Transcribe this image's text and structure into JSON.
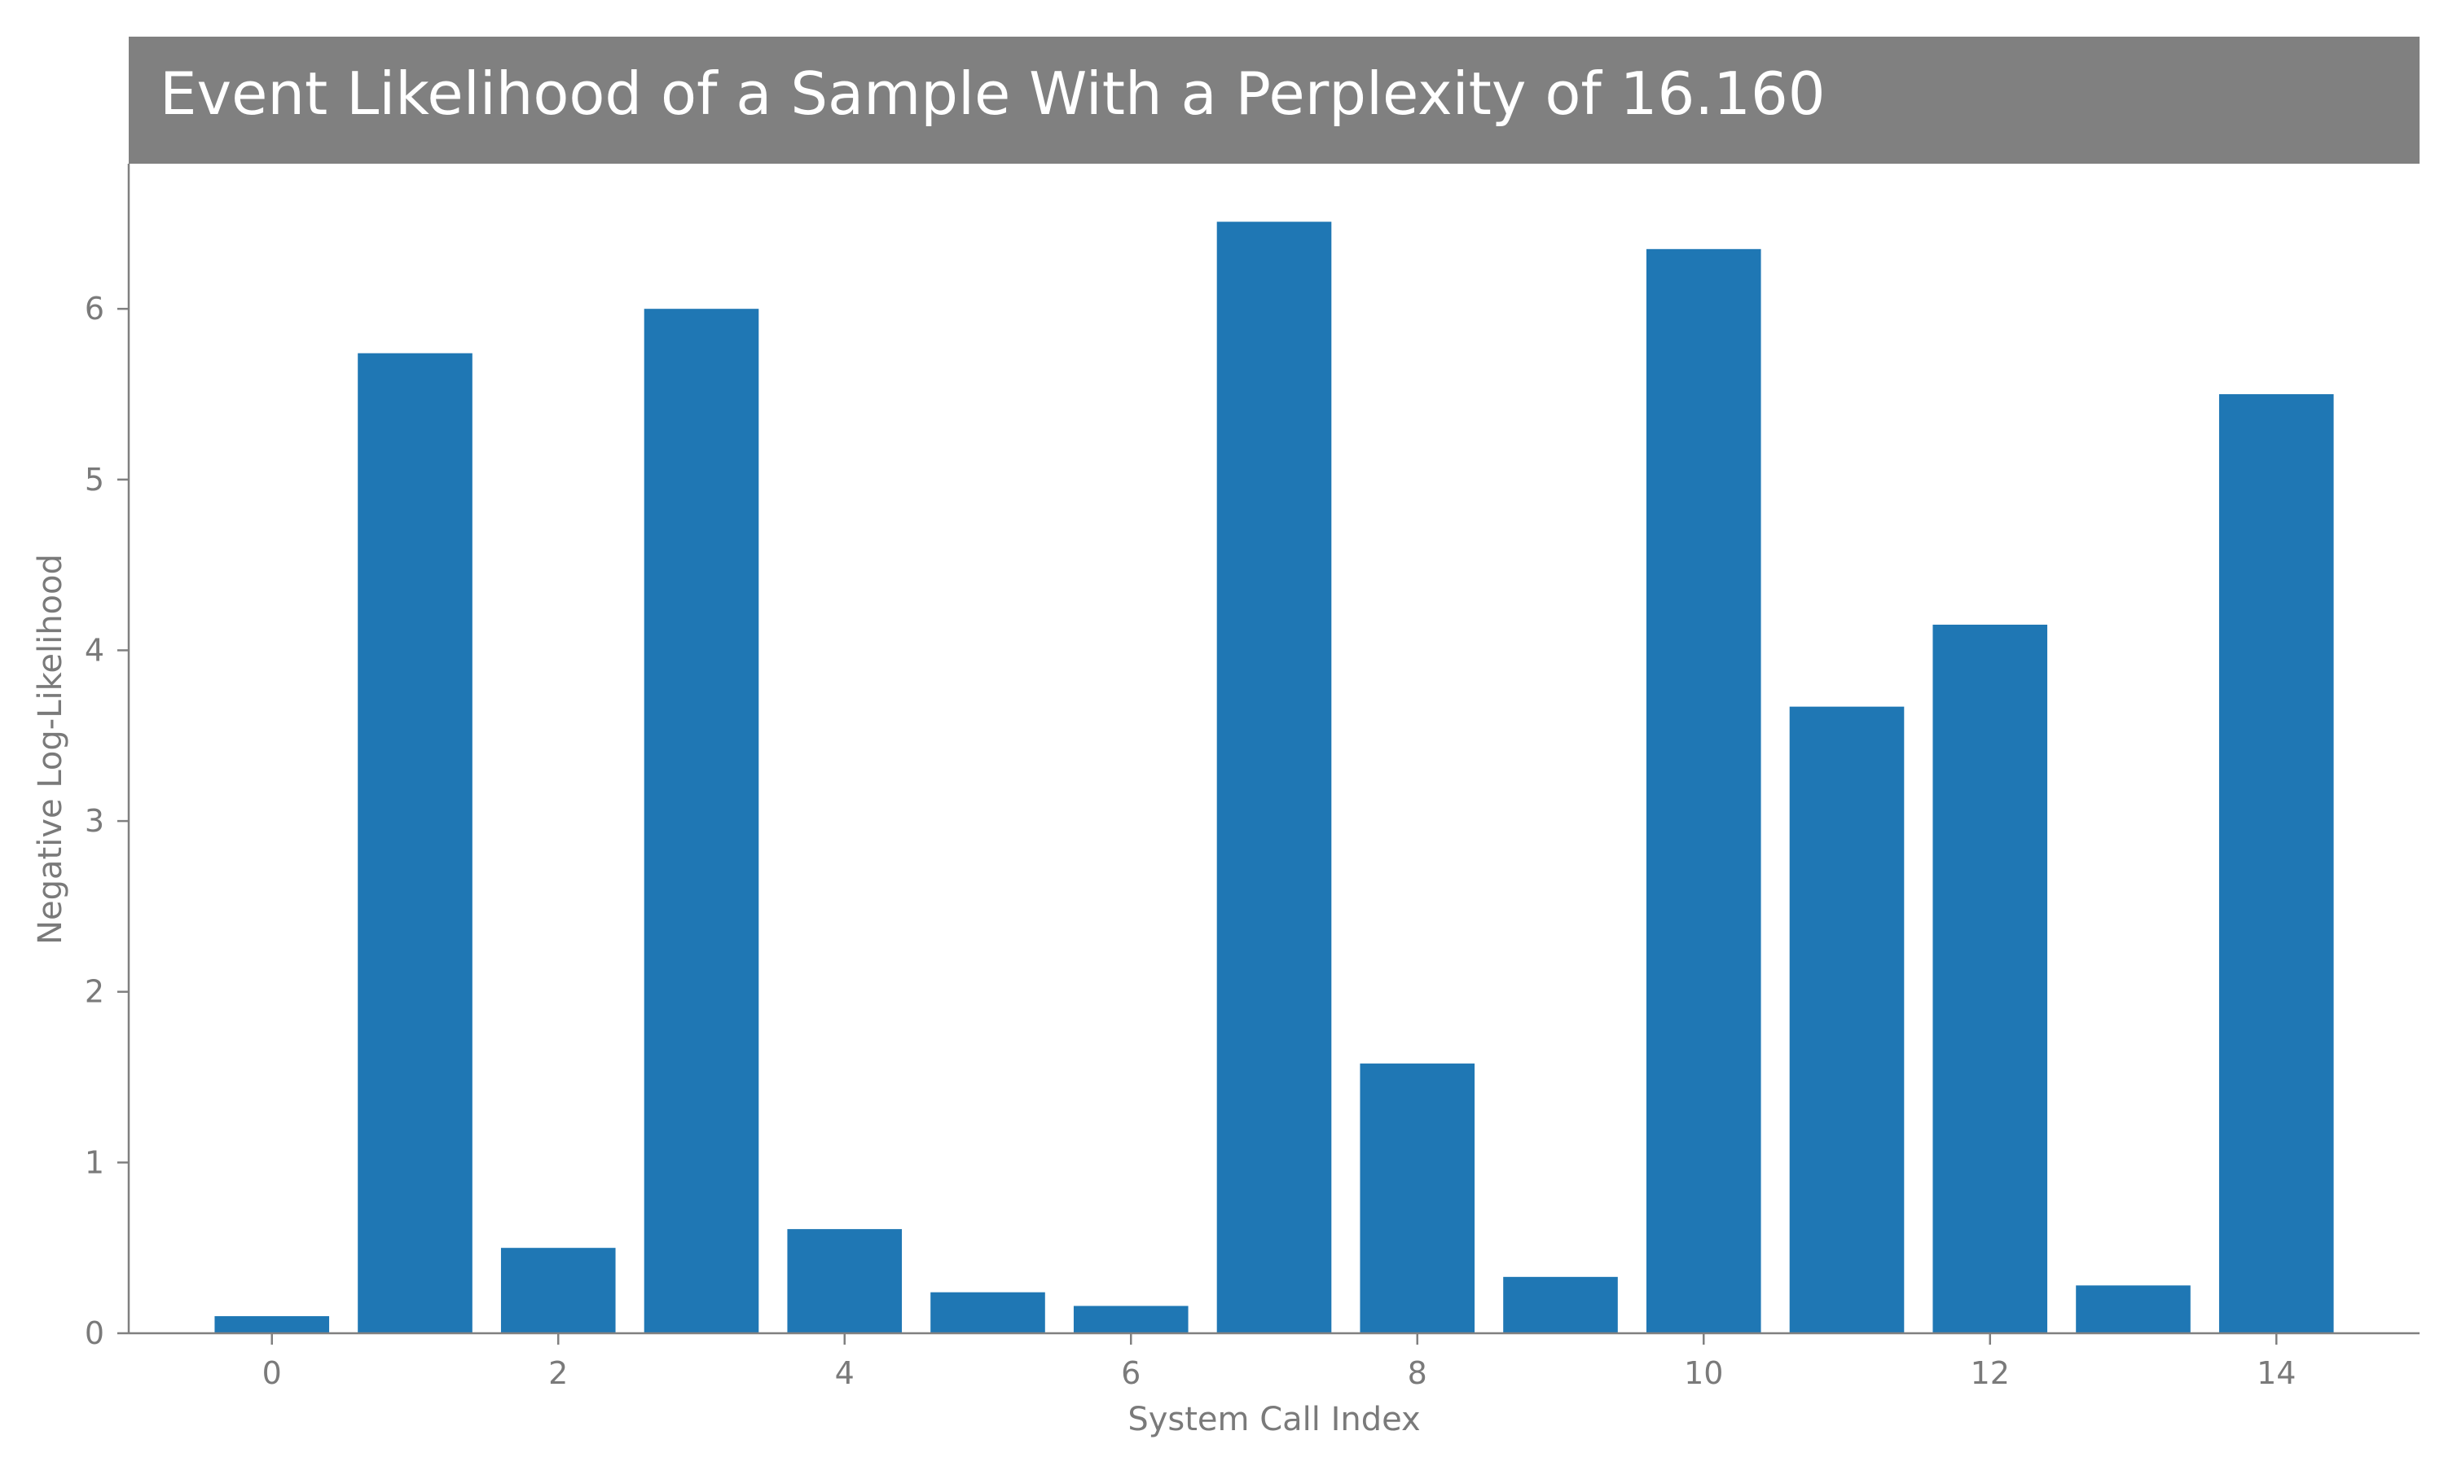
{
  "chart_data": {
    "type": "bar",
    "title": "Event Likelihood of a Sample With a Perplexity of 16.160",
    "xlabel": "System Call Index",
    "ylabel": "Negative Log-Likelihood",
    "x": [
      0,
      1,
      2,
      3,
      4,
      5,
      6,
      7,
      8,
      9,
      10,
      11,
      12,
      13,
      14
    ],
    "values": [
      0.1,
      5.74,
      0.5,
      6.0,
      0.61,
      0.24,
      0.16,
      6.51,
      1.58,
      0.33,
      6.35,
      3.67,
      4.15,
      0.28,
      5.5
    ],
    "xlim": [
      -1,
      15
    ],
    "ylim": [
      0,
      6.85
    ],
    "xticks": [
      0,
      2,
      4,
      6,
      8,
      10,
      12,
      14
    ],
    "yticks": [
      0,
      1,
      2,
      3,
      4,
      5,
      6
    ],
    "grid": false,
    "legend": "none",
    "bar_color": "#1f77b4",
    "title_band_color": "#808080",
    "axis_color": "#808080"
  }
}
